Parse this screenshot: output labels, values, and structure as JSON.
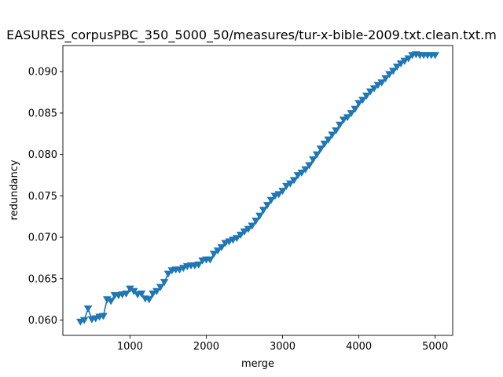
{
  "chart_data": {
    "type": "line",
    "title": "EASURES_corpusPBC_350_5000_50/measures/tur-x-bible-2009.txt.clean.txt.m",
    "xlabel": "merge",
    "ylabel": "redundancy",
    "xlim": [
      120,
      5230
    ],
    "ylim": [
      0.05815,
      0.09315
    ],
    "xticks": [
      1000,
      2000,
      3000,
      4000,
      5000
    ],
    "xtick_labels": [
      "1000",
      "2000",
      "3000",
      "4000",
      "5000"
    ],
    "yticks": [
      0.06,
      0.065,
      0.07,
      0.075,
      0.08,
      0.085,
      0.09
    ],
    "ytick_labels": [
      "0.060",
      "0.065",
      "0.070",
      "0.075",
      "0.080",
      "0.085",
      "0.090"
    ],
    "marker": "triangle-down",
    "color": "#1f77b4",
    "grid": false,
    "series": [
      {
        "x": [
          350,
          400,
          450,
          500,
          550,
          600,
          650,
          700,
          750,
          800,
          850,
          900,
          950,
          1000,
          1050,
          1100,
          1150,
          1200,
          1250,
          1300,
          1350,
          1400,
          1450,
          1500,
          1550,
          1600,
          1650,
          1700,
          1750,
          1800,
          1850,
          1900,
          1950,
          2000,
          2050,
          2100,
          2150,
          2200,
          2250,
          2300,
          2350,
          2400,
          2450,
          2500,
          2550,
          2600,
          2650,
          2700,
          2750,
          2800,
          2850,
          2900,
          2950,
          3000,
          3050,
          3100,
          3150,
          3200,
          3250,
          3300,
          3350,
          3400,
          3450,
          3500,
          3550,
          3600,
          3650,
          3700,
          3750,
          3800,
          3850,
          3900,
          3950,
          4000,
          4050,
          4100,
          4150,
          4200,
          4250,
          4300,
          4350,
          4400,
          4450,
          4500,
          4550,
          4600,
          4650,
          4700,
          4750,
          4800,
          4850,
          4900,
          4950,
          5000
        ],
        "y": [
          0.0598,
          0.06,
          0.0614,
          0.0601,
          0.0602,
          0.0604,
          0.0605,
          0.0625,
          0.0623,
          0.063,
          0.063,
          0.0631,
          0.0632,
          0.0638,
          0.0635,
          0.0631,
          0.0632,
          0.0626,
          0.0625,
          0.0632,
          0.0635,
          0.064,
          0.0646,
          0.0656,
          0.066,
          0.0661,
          0.0661,
          0.0663,
          0.0665,
          0.0666,
          0.0666,
          0.0667,
          0.0672,
          0.0673,
          0.0673,
          0.068,
          0.0684,
          0.0688,
          0.0693,
          0.0695,
          0.0697,
          0.0699,
          0.0703,
          0.0707,
          0.071,
          0.0714,
          0.072,
          0.0726,
          0.0733,
          0.0739,
          0.0745,
          0.075,
          0.0752,
          0.0756,
          0.0762,
          0.0765,
          0.0769,
          0.0775,
          0.0778,
          0.0782,
          0.0787,
          0.0794,
          0.08,
          0.0807,
          0.0813,
          0.0818,
          0.0824,
          0.0829,
          0.0836,
          0.0842,
          0.0845,
          0.085,
          0.0855,
          0.0862,
          0.0866,
          0.0871,
          0.0876,
          0.088,
          0.0884,
          0.0887,
          0.0892,
          0.0897,
          0.0901,
          0.0906,
          0.091,
          0.0913,
          0.0916,
          0.092,
          0.0921,
          0.092,
          0.092,
          0.092,
          0.092,
          0.092
        ]
      }
    ]
  }
}
